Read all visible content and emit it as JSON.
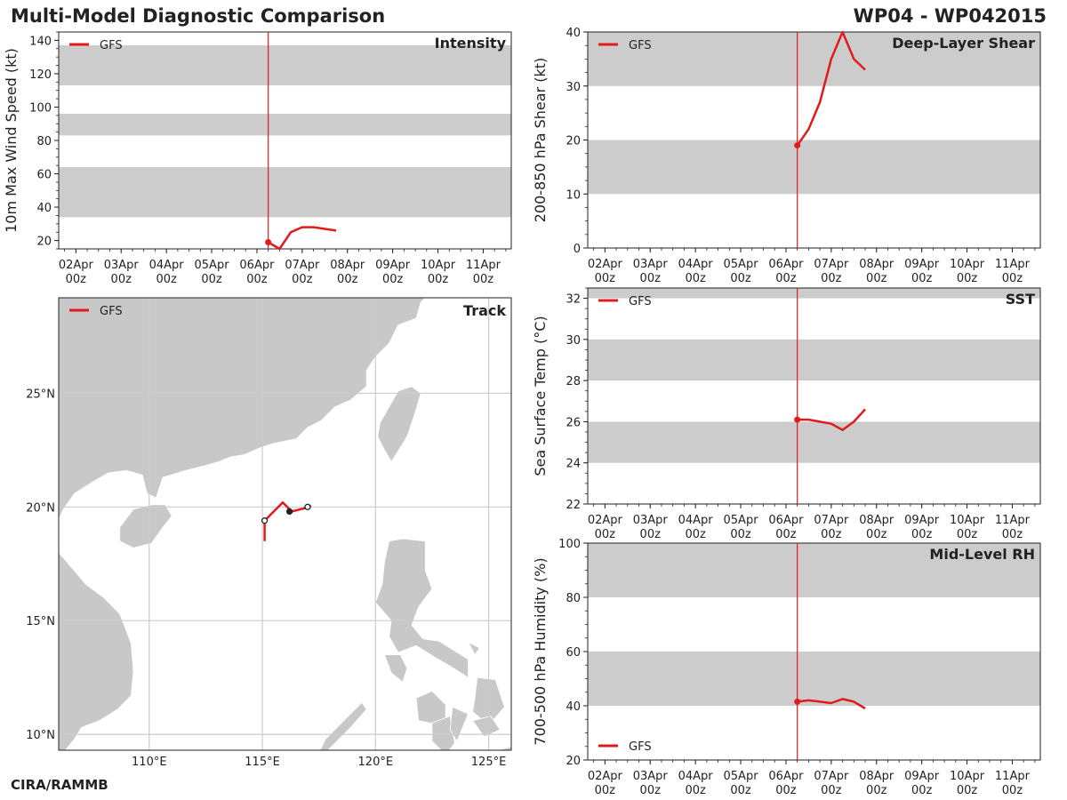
{
  "header": {
    "title": "Multi-Model Diagnostic Comparison",
    "storm": "WP04 - WP042015",
    "footer": "CIRA/RAMMB"
  },
  "colors": {
    "series": "#e31a1c",
    "band": "#cccccc",
    "land": "#c8c8c8",
    "grid": "#cccccc",
    "text": "#222222"
  },
  "chart_data": [
    {
      "id": "intensity",
      "type": "line",
      "title": "Intensity",
      "ylabel": "10m Max Wind Speed (kt)",
      "xlabel": "",
      "legend": [
        "GFS"
      ],
      "legend_position": "top-left",
      "x_ticks": [
        "02Apr\n00z",
        "03Apr\n00z",
        "04Apr\n00z",
        "05Apr\n00z",
        "06Apr\n00z",
        "07Apr\n00z",
        "08Apr\n00z",
        "09Apr\n00z",
        "10Apr\n00z",
        "11Apr\n00z"
      ],
      "x_axis_unit": "days since 01Apr 00z",
      "xlim": [
        0.62,
        10.62
      ],
      "ylim": [
        15,
        145
      ],
      "y_ticks": [
        20,
        40,
        60,
        80,
        100,
        120,
        140
      ],
      "bands": [
        [
          34,
          64
        ],
        [
          83,
          96
        ],
        [
          113,
          137
        ]
      ],
      "init_time": 5.25,
      "series": [
        {
          "name": "GFS",
          "x": [
            5.25,
            5.5,
            5.75,
            6.0,
            6.25,
            6.5,
            6.75
          ],
          "values": [
            19,
            15,
            25,
            28,
            28,
            27,
            26
          ]
        }
      ]
    },
    {
      "id": "shear",
      "type": "line",
      "title": "Deep-Layer Shear",
      "ylabel": "200-850 hPa Shear (kt)",
      "xlabel": "",
      "legend": [
        "GFS"
      ],
      "legend_position": "top-left",
      "x_ticks": [
        "02Apr\n00z",
        "03Apr\n00z",
        "04Apr\n00z",
        "05Apr\n00z",
        "06Apr\n00z",
        "07Apr\n00z",
        "08Apr\n00z",
        "09Apr\n00z",
        "10Apr\n00z",
        "11Apr\n00z"
      ],
      "xlim": [
        0.62,
        10.62
      ],
      "ylim": [
        0,
        40
      ],
      "y_ticks": [
        0,
        10,
        20,
        30,
        40
      ],
      "bands": [
        [
          10,
          20
        ],
        [
          30,
          40
        ]
      ],
      "init_time": 5.25,
      "series": [
        {
          "name": "GFS",
          "x": [
            5.25,
            5.5,
            5.75,
            6.0,
            6.25,
            6.5,
            6.75
          ],
          "values": [
            19,
            22,
            27,
            35,
            40,
            35,
            33
          ]
        }
      ]
    },
    {
      "id": "sst",
      "type": "line",
      "title": "SST",
      "ylabel": "Sea Surface Temp (°C)",
      "xlabel": "",
      "legend": [
        "GFS"
      ],
      "legend_position": "top-left",
      "x_ticks": [
        "02Apr\n00z",
        "03Apr\n00z",
        "04Apr\n00z",
        "05Apr\n00z",
        "06Apr\n00z",
        "07Apr\n00z",
        "08Apr\n00z",
        "09Apr\n00z",
        "10Apr\n00z",
        "11Apr\n00z"
      ],
      "xlim": [
        0.62,
        10.62
      ],
      "ylim": [
        22,
        32.5
      ],
      "y_ticks": [
        22,
        24,
        26,
        28,
        30,
        32
      ],
      "bands": [
        [
          24,
          26
        ],
        [
          28,
          30
        ],
        [
          32,
          32.5
        ]
      ],
      "init_time": 5.25,
      "series": [
        {
          "name": "GFS",
          "x": [
            5.25,
            5.5,
            5.75,
            6.0,
            6.25,
            6.5,
            6.75
          ],
          "values": [
            26.1,
            26.1,
            26.0,
            25.9,
            25.6,
            26.0,
            26.6
          ]
        }
      ]
    },
    {
      "id": "rh",
      "type": "line",
      "title": "Mid-Level RH",
      "ylabel": "700-500 hPa Humidity (%)",
      "xlabel": "",
      "legend": [
        "GFS"
      ],
      "legend_position": "bottom-left",
      "x_ticks": [
        "02Apr\n00z",
        "03Apr\n00z",
        "04Apr\n00z",
        "05Apr\n00z",
        "06Apr\n00z",
        "07Apr\n00z",
        "08Apr\n00z",
        "09Apr\n00z",
        "10Apr\n00z",
        "11Apr\n00z"
      ],
      "xlim": [
        0.62,
        10.62
      ],
      "ylim": [
        20,
        100
      ],
      "y_ticks": [
        20,
        40,
        60,
        80,
        100
      ],
      "bands": [
        [
          40,
          60
        ],
        [
          80,
          100
        ]
      ],
      "init_time": 5.25,
      "series": [
        {
          "name": "GFS",
          "x": [
            5.25,
            5.5,
            5.75,
            6.0,
            6.25,
            6.5,
            6.75
          ],
          "values": [
            41.5,
            42,
            41.5,
            41,
            42.5,
            41.5,
            39
          ]
        }
      ]
    },
    {
      "id": "track",
      "type": "line",
      "title": "Track",
      "legend": [
        "GFS"
      ],
      "legend_position": "top-left",
      "xlim": [
        106,
        126
      ],
      "ylim": [
        9.3,
        29.2
      ],
      "x_ticks": [
        110,
        115,
        120,
        125
      ],
      "x_tick_labels": [
        "110°E",
        "115°E",
        "120°E",
        "125°E"
      ],
      "y_ticks": [
        10,
        15,
        20,
        25
      ],
      "y_tick_labels": [
        "10°N",
        "15°N",
        "20°N",
        "25°N"
      ],
      "series": [
        {
          "name": "GFS",
          "lon": [
            115.1,
            115.1,
            115.9,
            116.3,
            117.1,
            117.1
          ],
          "lat": [
            18.5,
            19.4,
            20.2,
            19.8,
            20.0,
            20.1
          ]
        }
      ],
      "markers": [
        {
          "kind": "open",
          "lon": 115.1,
          "lat": 19.4
        },
        {
          "kind": "filled",
          "lon": 116.2,
          "lat": 19.8
        },
        {
          "kind": "open",
          "lon": 117.0,
          "lat": 20.0
        }
      ]
    }
  ]
}
